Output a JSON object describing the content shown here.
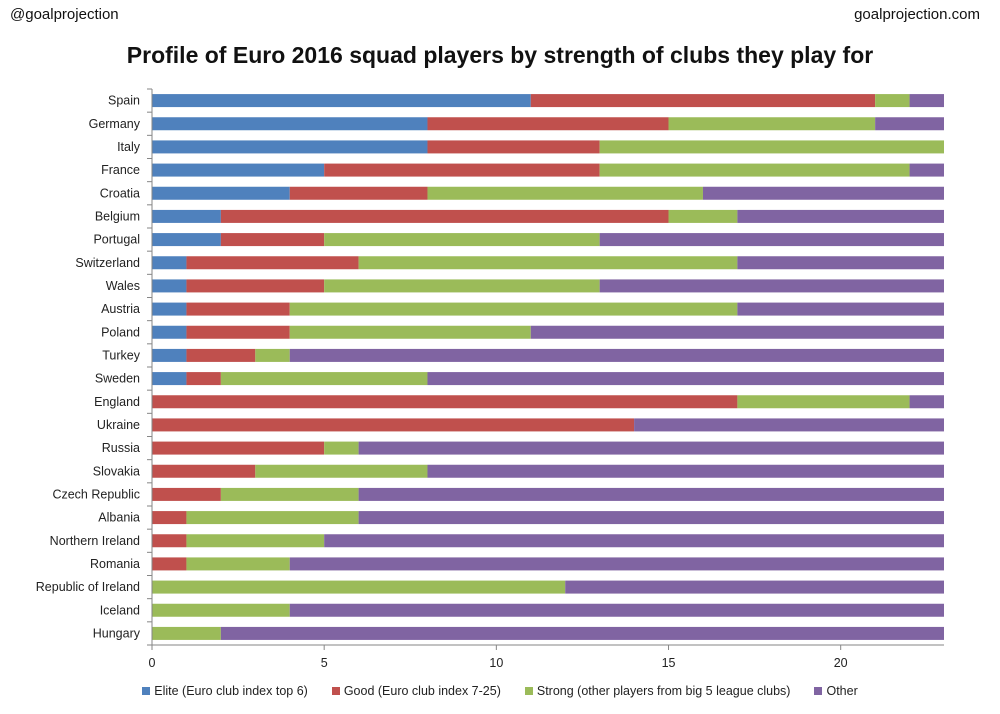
{
  "header": {
    "left_handle": "@goalprojection",
    "right_site": "goalprojection.com"
  },
  "chart_data": {
    "type": "bar",
    "orientation": "horizontal",
    "stacked": true,
    "title": "Profile of Euro 2016 squad players by strength of clubs they play for",
    "xlabel": "",
    "ylabel": "",
    "xlim": [
      0,
      23
    ],
    "xticks": [
      0,
      5,
      10,
      15,
      20
    ],
    "grid": false,
    "legend_position": "bottom",
    "categories": [
      "Spain",
      "Germany",
      "Italy",
      "France",
      "Croatia",
      "Belgium",
      "Portugal",
      "Switzerland",
      "Wales",
      "Austria",
      "Poland",
      "Turkey",
      "Sweden",
      "England",
      "Ukraine",
      "Russia",
      "Slovakia",
      "Czech Republic",
      "Albania",
      "Northern Ireland",
      "Romania",
      "Republic of Ireland",
      "Iceland",
      "Hungary"
    ],
    "series": [
      {
        "name": "Elite (Euro club index top 6)",
        "color": "#4F81BD",
        "values": [
          11,
          8,
          8,
          5,
          4,
          2,
          2,
          1,
          1,
          1,
          1,
          1,
          1,
          0,
          0,
          0,
          0,
          0,
          0,
          0,
          0,
          0,
          0,
          0
        ]
      },
      {
        "name": "Good (Euro club index 7-25)",
        "color": "#C0504D",
        "values": [
          10,
          7,
          5,
          8,
          4,
          13,
          3,
          5,
          4,
          3,
          3,
          2,
          1,
          17,
          14,
          5,
          3,
          2,
          1,
          1,
          1,
          0,
          0,
          0
        ]
      },
      {
        "name": "Strong (other players from big 5 league clubs)",
        "color": "#9BBB59",
        "values": [
          1,
          6,
          10,
          9,
          8,
          2,
          8,
          11,
          8,
          13,
          7,
          1,
          6,
          5,
          0,
          1,
          5,
          4,
          5,
          4,
          3,
          12,
          4,
          2
        ]
      },
      {
        "name": "Other",
        "color": "#8064A2",
        "values": [
          1,
          2,
          0,
          1,
          7,
          6,
          10,
          6,
          10,
          6,
          12,
          19,
          15,
          1,
          9,
          17,
          15,
          17,
          17,
          18,
          19,
          11,
          19,
          21
        ]
      }
    ]
  }
}
